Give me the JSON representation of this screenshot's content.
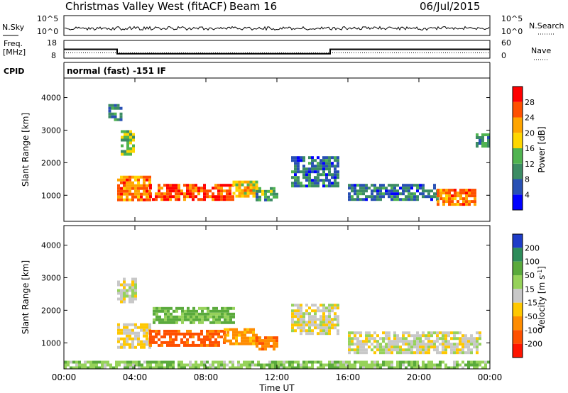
{
  "header": {
    "station": "Christmas Valley West (fitACF)",
    "beam": "Beam 16",
    "date": "06/Jul/2015"
  },
  "side_labels": {
    "nsky": "N.Sky",
    "nsearch": "N.Search",
    "freq_line1": "Freq.",
    "freq_line2": "[MHz]",
    "nave": "Nave",
    "cpid": "CPID",
    "cpid_value": "normal (fast) -151 IF"
  },
  "small_axes": {
    "noise_ticks": [
      "10^5",
      "10^0"
    ],
    "freq_ticks": [
      "18",
      "8"
    ],
    "nave_ticks": [
      "60",
      "0"
    ]
  },
  "chart_data": [
    {
      "type": "line",
      "title": "Noise",
      "series": [
        {
          "name": "N.Sky"
        },
        {
          "name": "N.Search"
        }
      ]
    },
    {
      "type": "line",
      "title": "Frequency",
      "x": [
        0,
        3,
        3,
        15,
        15,
        24
      ],
      "series": [
        {
          "name": "Freq.",
          "values": [
            13,
            13,
            10.5,
            10.5,
            13,
            13
          ]
        },
        {
          "name": "Nave",
          "values": [
            18,
            18,
            18,
            18,
            18,
            18
          ]
        }
      ]
    },
    {
      "type": "heatmap",
      "xlabel": "",
      "ylabel": "Slant Range [km]",
      "xlim": [
        0,
        24
      ],
      "ylim": [
        200,
        4600
      ],
      "colorbar": {
        "label": "Power [dB]",
        "ticks": [
          4,
          8,
          12,
          16,
          20,
          24,
          28
        ]
      },
      "regions": [
        {
          "t": [
            3.0,
            4.8
          ],
          "r": [
            850,
            1600
          ],
          "level": 24
        },
        {
          "t": [
            4.8,
            9.5
          ],
          "r": [
            900,
            1350
          ],
          "level": 26
        },
        {
          "t": [
            9.5,
            10.8
          ],
          "r": [
            1000,
            1450
          ],
          "level": 20
        },
        {
          "t": [
            10.8,
            12.0
          ],
          "r": [
            850,
            1250
          ],
          "level": 12
        },
        {
          "t": [
            3.2,
            4.0
          ],
          "r": [
            2300,
            3000
          ],
          "level": 14
        },
        {
          "t": [
            2.5,
            3.2
          ],
          "r": [
            3300,
            3800
          ],
          "level": 10
        },
        {
          "t": [
            12.8,
            15.5
          ],
          "r": [
            1300,
            2200
          ],
          "level": 8
        },
        {
          "t": [
            16.0,
            21.0
          ],
          "r": [
            900,
            1350
          ],
          "level": 8
        },
        {
          "t": [
            21.0,
            23.2
          ],
          "r": [
            700,
            1200
          ],
          "level": 24
        },
        {
          "t": [
            23.2,
            24.0
          ],
          "r": [
            2500,
            2900
          ],
          "level": 10
        }
      ]
    },
    {
      "type": "heatmap",
      "xlabel": "Time UT",
      "ylabel": "Slant Range [km]",
      "xlim": [
        0,
        24
      ],
      "ylim": [
        200,
        4600
      ],
      "colorbar": {
        "label": "Velocity [m s-1]",
        "ticks": [
          -200,
          -100,
          -50,
          -15,
          15,
          50,
          100,
          200
        ]
      },
      "regions": [
        {
          "t": [
            3.0,
            4.8
          ],
          "r": [
            850,
            1600
          ],
          "v": -20
        },
        {
          "t": [
            4.8,
            9.0
          ],
          "r": [
            900,
            1400
          ],
          "v": -120
        },
        {
          "t": [
            9.0,
            10.8
          ],
          "r": [
            1000,
            1450
          ],
          "v": -60
        },
        {
          "t": [
            10.8,
            12.0
          ],
          "r": [
            850,
            1200
          ],
          "v": -90
        },
        {
          "t": [
            5.0,
            9.5
          ],
          "r": [
            1600,
            2100
          ],
          "v": 60
        },
        {
          "t": [
            3.0,
            4.0
          ],
          "r": [
            2300,
            3000
          ],
          "v": 5
        },
        {
          "t": [
            12.8,
            15.5
          ],
          "r": [
            1300,
            2200
          ],
          "v": 0
        },
        {
          "t": [
            16.0,
            23.5
          ],
          "r": [
            700,
            1350
          ],
          "v": 0
        },
        {
          "t": [
            0.0,
            24.0
          ],
          "r": [
            200,
            450
          ],
          "v": 40
        }
      ]
    }
  ],
  "x_ticks": [
    "00:00",
    "04:00",
    "08:00",
    "12:00",
    "16:00",
    "20:00",
    "00:00"
  ],
  "y_ticks": [
    "1000",
    "2000",
    "3000",
    "4000"
  ],
  "x_axis_label": "Time UT",
  "y_axis_label": "Slant Range [km]",
  "power_colorbar": {
    "label": "Power [dB]",
    "ticks": [
      "4",
      "8",
      "12",
      "16",
      "20",
      "24",
      "28"
    ],
    "colors": [
      "#0000ff",
      "#2850b4",
      "#3c8c64",
      "#50b450",
      "#ffd700",
      "#ffa500",
      "#ff5000",
      "#ff0000"
    ]
  },
  "velocity_colorbar": {
    "label": "Velocity [m s",
    "label_sup": "-1",
    "label_end": "]",
    "ticks": [
      "200",
      "100",
      "50",
      "15",
      "-15",
      "-50",
      "-100",
      "-200"
    ],
    "colors": [
      "#1e3cc8",
      "#2d8c5a",
      "#5aaa3c",
      "#96d25a",
      "#c8c8c8",
      "#ffc800",
      "#ff8c00",
      "#ff5000",
      "#ff1400"
    ]
  }
}
